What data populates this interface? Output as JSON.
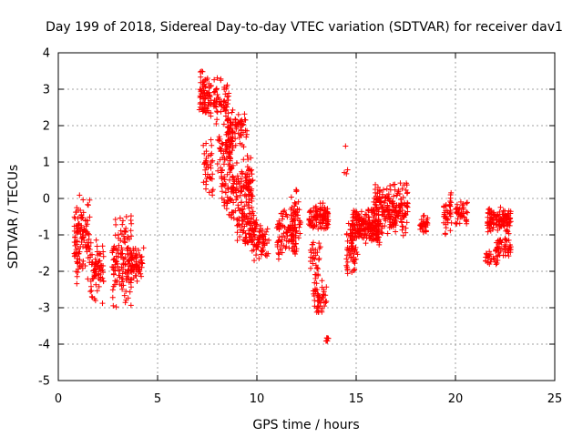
{
  "chart_data": {
    "type": "scatter",
    "title": "Day 199 of 2018, Sidereal Day-to-day VTEC variation (SDTVAR) for receiver dav1",
    "xlabel": "GPS time / hours",
    "ylabel": "SDTVAR / TECUs",
    "xlim": [
      0,
      25
    ],
    "ylim": [
      -5,
      4
    ],
    "xticks": [
      0,
      5,
      10,
      15,
      20,
      25
    ],
    "yticks": [
      -5,
      -4,
      -3,
      -2,
      -1,
      0,
      1,
      2,
      3,
      4
    ],
    "grid": true,
    "marker": "+",
    "color": "#ff0000",
    "clusters": [
      {
        "x": [
          0.8,
          1.6
        ],
        "y": [
          -2.5,
          0.2
        ],
        "n": 110
      },
      {
        "x": [
          1.6,
          2.3
        ],
        "y": [
          -3.0,
          -0.9
        ],
        "n": 70
      },
      {
        "x": [
          2.7,
          3.7
        ],
        "y": [
          -3.1,
          -0.4
        ],
        "n": 120
      },
      {
        "x": [
          3.5,
          4.3
        ],
        "y": [
          -2.3,
          -1.2
        ],
        "n": 70
      },
      {
        "x": [
          7.1,
          7.7
        ],
        "y": [
          2.2,
          3.6
        ],
        "n": 80
      },
      {
        "x": [
          7.3,
          7.8
        ],
        "y": [
          -0.1,
          1.8
        ],
        "n": 40
      },
      {
        "x": [
          7.8,
          8.6
        ],
        "y": [
          2.0,
          3.5
        ],
        "n": 60
      },
      {
        "x": [
          8.0,
          8.8
        ],
        "y": [
          0.6,
          2.0
        ],
        "n": 60
      },
      {
        "x": [
          8.5,
          9.5
        ],
        "y": [
          1.3,
          2.5
        ],
        "n": 70
      },
      {
        "x": [
          8.2,
          9.8
        ],
        "y": [
          -0.6,
          1.2
        ],
        "n": 160
      },
      {
        "x": [
          9.0,
          10.0
        ],
        "y": [
          -1.3,
          -0.1
        ],
        "n": 80
      },
      {
        "x": [
          9.7,
          10.6
        ],
        "y": [
          -1.8,
          -0.6
        ],
        "n": 70
      },
      {
        "x": [
          11.0,
          12.0
        ],
        "y": [
          -1.8,
          -0.2
        ],
        "n": 90
      },
      {
        "x": [
          11.7,
          12.2
        ],
        "y": [
          -1.7,
          0.3
        ],
        "n": 50
      },
      {
        "x": [
          12.6,
          13.6
        ],
        "y": [
          -1.0,
          -0.1
        ],
        "n": 100
      },
      {
        "x": [
          12.7,
          13.2
        ],
        "y": [
          -2.3,
          -1.1
        ],
        "n": 30
      },
      {
        "x": [
          12.8,
          13.5
        ],
        "y": [
          -3.3,
          -2.1
        ],
        "n": 50
      },
      {
        "x": [
          13.4,
          13.6
        ],
        "y": [
          -4.0,
          -3.7
        ],
        "n": 8
      },
      {
        "x": [
          14.4,
          14.7
        ],
        "y": [
          0.3,
          1.7
        ],
        "n": 4
      },
      {
        "x": [
          14.5,
          15.1
        ],
        "y": [
          -2.2,
          -0.5
        ],
        "n": 60
      },
      {
        "x": [
          14.8,
          16.2
        ],
        "y": [
          -1.3,
          -0.2
        ],
        "n": 180
      },
      {
        "x": [
          15.8,
          17.6
        ],
        "y": [
          -1.2,
          0.5
        ],
        "n": 220
      },
      {
        "x": [
          18.2,
          18.6
        ],
        "y": [
          -1.0,
          -0.4
        ],
        "n": 30
      },
      {
        "x": [
          19.4,
          19.8
        ],
        "y": [
          -1.0,
          0.2
        ],
        "n": 40
      },
      {
        "x": [
          20.0,
          20.6
        ],
        "y": [
          -0.9,
          0.0
        ],
        "n": 40
      },
      {
        "x": [
          21.5,
          22.2
        ],
        "y": [
          -1.9,
          -1.4
        ],
        "n": 25
      },
      {
        "x": [
          21.6,
          22.8
        ],
        "y": [
          -1.0,
          -0.2
        ],
        "n": 110
      },
      {
        "x": [
          22.0,
          22.8
        ],
        "y": [
          -1.7,
          -1.0
        ],
        "n": 50
      }
    ]
  }
}
